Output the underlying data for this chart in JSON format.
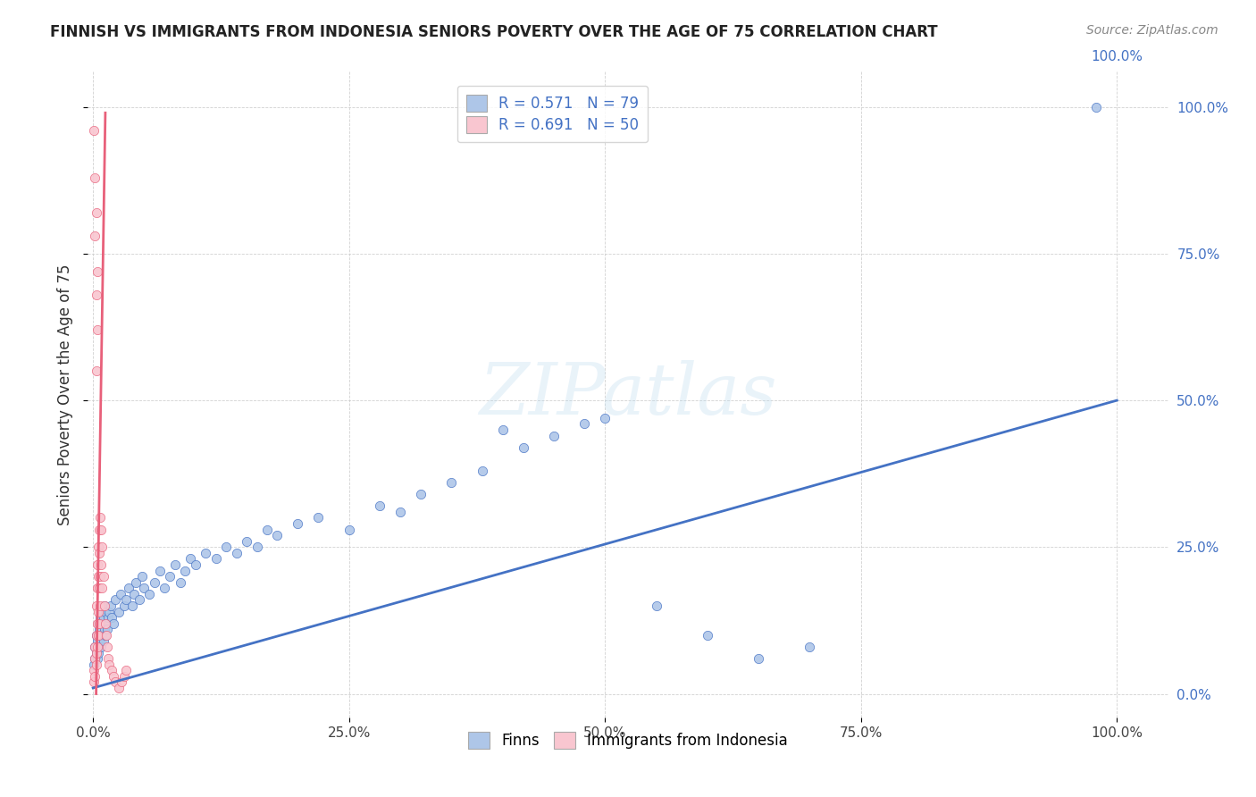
{
  "title": "FINNISH VS IMMIGRANTS FROM INDONESIA SENIORS POVERTY OVER THE AGE OF 75 CORRELATION CHART",
  "source": "Source: ZipAtlas.com",
  "ylabel": "Seniors Poverty Over the Age of 75",
  "finns_R": 0.571,
  "finns_N": 79,
  "indonesia_R": 0.691,
  "indonesia_N": 50,
  "finns_color": "#aec6e8",
  "indonesia_color": "#f9c6d0",
  "finns_line_color": "#4472c4",
  "indonesia_line_color": "#e8607a",
  "watermark_text": "ZIPatlas",
  "finns_trend_x0": 0.0,
  "finns_trend_y0": 0.01,
  "finns_trend_x1": 1.0,
  "finns_trend_y1": 0.5,
  "indonesia_trend_x0": 0.003,
  "indonesia_trend_y0": 0.0,
  "indonesia_trend_x1": 0.012,
  "indonesia_trend_y1": 0.99,
  "xlim_min": -0.005,
  "xlim_max": 1.05,
  "ylim_min": -0.04,
  "ylim_max": 1.06,
  "finns_x": [
    0.001,
    0.002,
    0.002,
    0.003,
    0.003,
    0.004,
    0.004,
    0.005,
    0.005,
    0.005,
    0.006,
    0.006,
    0.007,
    0.007,
    0.008,
    0.008,
    0.009,
    0.009,
    0.01,
    0.01,
    0.011,
    0.011,
    0.012,
    0.012,
    0.013,
    0.014,
    0.015,
    0.016,
    0.017,
    0.018,
    0.02,
    0.022,
    0.025,
    0.027,
    0.03,
    0.032,
    0.035,
    0.038,
    0.04,
    0.042,
    0.045,
    0.048,
    0.05,
    0.055,
    0.06,
    0.065,
    0.07,
    0.075,
    0.08,
    0.085,
    0.09,
    0.095,
    0.1,
    0.11,
    0.12,
    0.13,
    0.14,
    0.15,
    0.16,
    0.17,
    0.18,
    0.2,
    0.22,
    0.25,
    0.28,
    0.3,
    0.32,
    0.35,
    0.38,
    0.4,
    0.42,
    0.45,
    0.48,
    0.5,
    0.55,
    0.6,
    0.65,
    0.7,
    0.98
  ],
  "finns_y": [
    0.05,
    0.06,
    0.08,
    0.07,
    0.1,
    0.06,
    0.09,
    0.07,
    0.1,
    0.12,
    0.08,
    0.11,
    0.09,
    0.13,
    0.08,
    0.12,
    0.1,
    0.14,
    0.09,
    0.13,
    0.11,
    0.15,
    0.1,
    0.14,
    0.12,
    0.11,
    0.13,
    0.14,
    0.15,
    0.13,
    0.12,
    0.16,
    0.14,
    0.17,
    0.15,
    0.16,
    0.18,
    0.15,
    0.17,
    0.19,
    0.16,
    0.2,
    0.18,
    0.17,
    0.19,
    0.21,
    0.18,
    0.2,
    0.22,
    0.19,
    0.21,
    0.23,
    0.22,
    0.24,
    0.23,
    0.25,
    0.24,
    0.26,
    0.25,
    0.28,
    0.27,
    0.29,
    0.3,
    0.28,
    0.32,
    0.31,
    0.34,
    0.36,
    0.38,
    0.45,
    0.42,
    0.44,
    0.46,
    0.47,
    0.15,
    0.1,
    0.06,
    0.08,
    1.0
  ],
  "indonesia_x": [
    0.001,
    0.001,
    0.002,
    0.002,
    0.002,
    0.003,
    0.003,
    0.003,
    0.003,
    0.004,
    0.004,
    0.004,
    0.004,
    0.005,
    0.005,
    0.005,
    0.005,
    0.006,
    0.006,
    0.006,
    0.006,
    0.007,
    0.007,
    0.007,
    0.008,
    0.008,
    0.009,
    0.009,
    0.01,
    0.011,
    0.012,
    0.013,
    0.014,
    0.015,
    0.016,
    0.018,
    0.02,
    0.022,
    0.025,
    0.028,
    0.03,
    0.032,
    0.003,
    0.004,
    0.003,
    0.004,
    0.002,
    0.003,
    0.002,
    0.001
  ],
  "indonesia_y": [
    0.02,
    0.04,
    0.03,
    0.06,
    0.08,
    0.05,
    0.07,
    0.1,
    0.15,
    0.08,
    0.12,
    0.18,
    0.22,
    0.1,
    0.14,
    0.2,
    0.25,
    0.12,
    0.18,
    0.24,
    0.28,
    0.15,
    0.2,
    0.3,
    0.22,
    0.28,
    0.18,
    0.25,
    0.2,
    0.15,
    0.12,
    0.1,
    0.08,
    0.06,
    0.05,
    0.04,
    0.03,
    0.02,
    0.01,
    0.02,
    0.03,
    0.04,
    0.55,
    0.62,
    0.68,
    0.72,
    0.78,
    0.82,
    0.88,
    0.96
  ]
}
